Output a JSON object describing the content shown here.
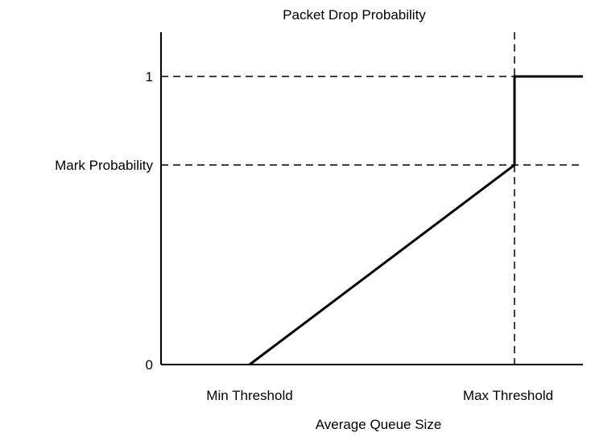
{
  "chart_data": {
    "type": "line",
    "title": "Packet Drop Probability",
    "xlabel": "Average Queue Size",
    "ylabel": "",
    "x_ticks": [
      "Min Threshold",
      "Max Threshold"
    ],
    "y_ticks": [
      "0",
      "Mark Probability",
      "1"
    ],
    "grid": false,
    "series": [
      {
        "points": [
          {
            "x": "Min Threshold",
            "y": "0"
          },
          {
            "x": "Max Threshold",
            "y": "Mark Probability"
          },
          {
            "x": "Max Threshold",
            "y": "1"
          },
          {
            "x": "beyond",
            "y": "1"
          }
        ],
        "color": "#000000"
      }
    ],
    "reference_lines": [
      {
        "orientation": "horizontal",
        "at": "1",
        "style": "dashed"
      },
      {
        "orientation": "horizontal",
        "at": "Mark Probability",
        "style": "dashed"
      },
      {
        "orientation": "vertical",
        "at": "Max Threshold",
        "style": "dashed"
      }
    ]
  }
}
